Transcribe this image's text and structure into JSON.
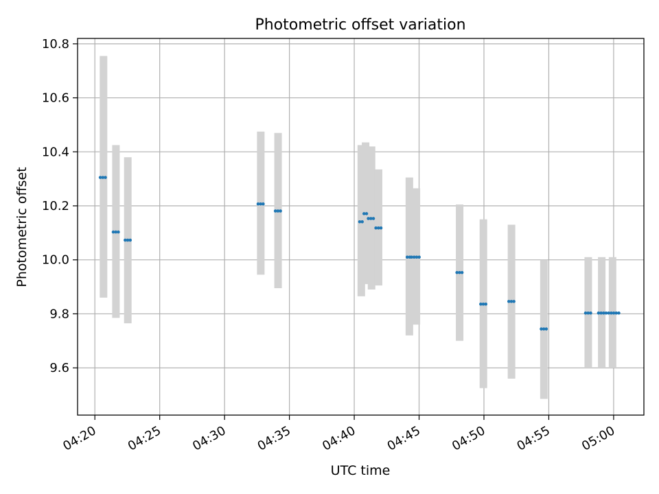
{
  "chart_data": {
    "type": "scatter",
    "title": "Photometric offset variation",
    "xlabel": "UTC time",
    "ylabel": "Photometric offset",
    "xlim": [
      "04:18:40",
      "05:02:20"
    ],
    "ylim": [
      9.425,
      10.82
    ],
    "x_ticks": [
      "04:20",
      "04:25",
      "04:30",
      "04:35",
      "04:40",
      "04:45",
      "04:50",
      "04:55",
      "05:00"
    ],
    "y_ticks": [
      "9.6",
      "9.8",
      "10.0",
      "10.2",
      "10.4",
      "10.6",
      "10.8"
    ],
    "grid": true,
    "colors": {
      "marker": "#1f77b4",
      "range_bar": "#d3d3d3",
      "grid": "#b0b0b0"
    },
    "points": [
      {
        "x_start": "04:20:25",
        "x_end": "04:20:55",
        "y": 10.305,
        "range": [
          9.86,
          10.755
        ]
      },
      {
        "x_start": "04:21:25",
        "x_end": "04:21:50",
        "y": 10.103,
        "range": [
          9.785,
          10.425
        ]
      },
      {
        "x_start": "04:22:20",
        "x_end": "04:22:45",
        "y": 10.073,
        "range": [
          9.765,
          10.38
        ]
      },
      {
        "x_start": "04:32:35",
        "x_end": "04:33:00",
        "y": 10.207,
        "range": [
          9.945,
          10.475
        ]
      },
      {
        "x_start": "04:33:55",
        "x_end": "04:34:20",
        "y": 10.181,
        "range": [
          9.895,
          10.47
        ]
      },
      {
        "x_start": "04:40:25",
        "x_end": "04:40:40",
        "y": 10.141,
        "range": [
          9.865,
          10.425
        ]
      },
      {
        "x_start": "04:40:45",
        "x_end": "04:41:00",
        "y": 10.171,
        "range": [
          9.91,
          10.435
        ]
      },
      {
        "x_start": "04:41:05",
        "x_end": "04:41:35",
        "y": 10.153,
        "range": [
          9.89,
          10.42
        ]
      },
      {
        "x_start": "04:41:40",
        "x_end": "04:42:05",
        "y": 10.118,
        "range": [
          9.905,
          10.335
        ]
      },
      {
        "x_start": "04:44:05",
        "x_end": "04:44:25",
        "y": 10.01,
        "range": [
          9.72,
          10.305
        ]
      },
      {
        "x_start": "04:44:25",
        "x_end": "04:45:10",
        "y": 10.01,
        "range": [
          9.76,
          10.265
        ]
      },
      {
        "x_start": "04:47:55",
        "x_end": "04:48:20",
        "y": 9.953,
        "range": [
          9.7,
          10.205
        ]
      },
      {
        "x_start": "04:49:45",
        "x_end": "04:50:10",
        "y": 9.836,
        "range": [
          9.525,
          10.15
        ]
      },
      {
        "x_start": "04:51:55",
        "x_end": "04:52:20",
        "y": 9.846,
        "range": [
          9.56,
          10.13
        ]
      },
      {
        "x_start": "04:54:25",
        "x_end": "04:54:50",
        "y": 9.744,
        "range": [
          9.485,
          10.0
        ]
      },
      {
        "x_start": "04:57:50",
        "x_end": "04:58:15",
        "y": 9.803,
        "range": [
          9.6,
          10.01
        ]
      },
      {
        "x_start": "04:58:50",
        "x_end": "04:59:20",
        "y": 9.803,
        "range": [
          9.6,
          10.01
        ]
      },
      {
        "x_start": "04:59:25",
        "x_end": "05:00:25",
        "y": 9.803,
        "range": [
          9.6,
          10.01
        ]
      }
    ]
  }
}
